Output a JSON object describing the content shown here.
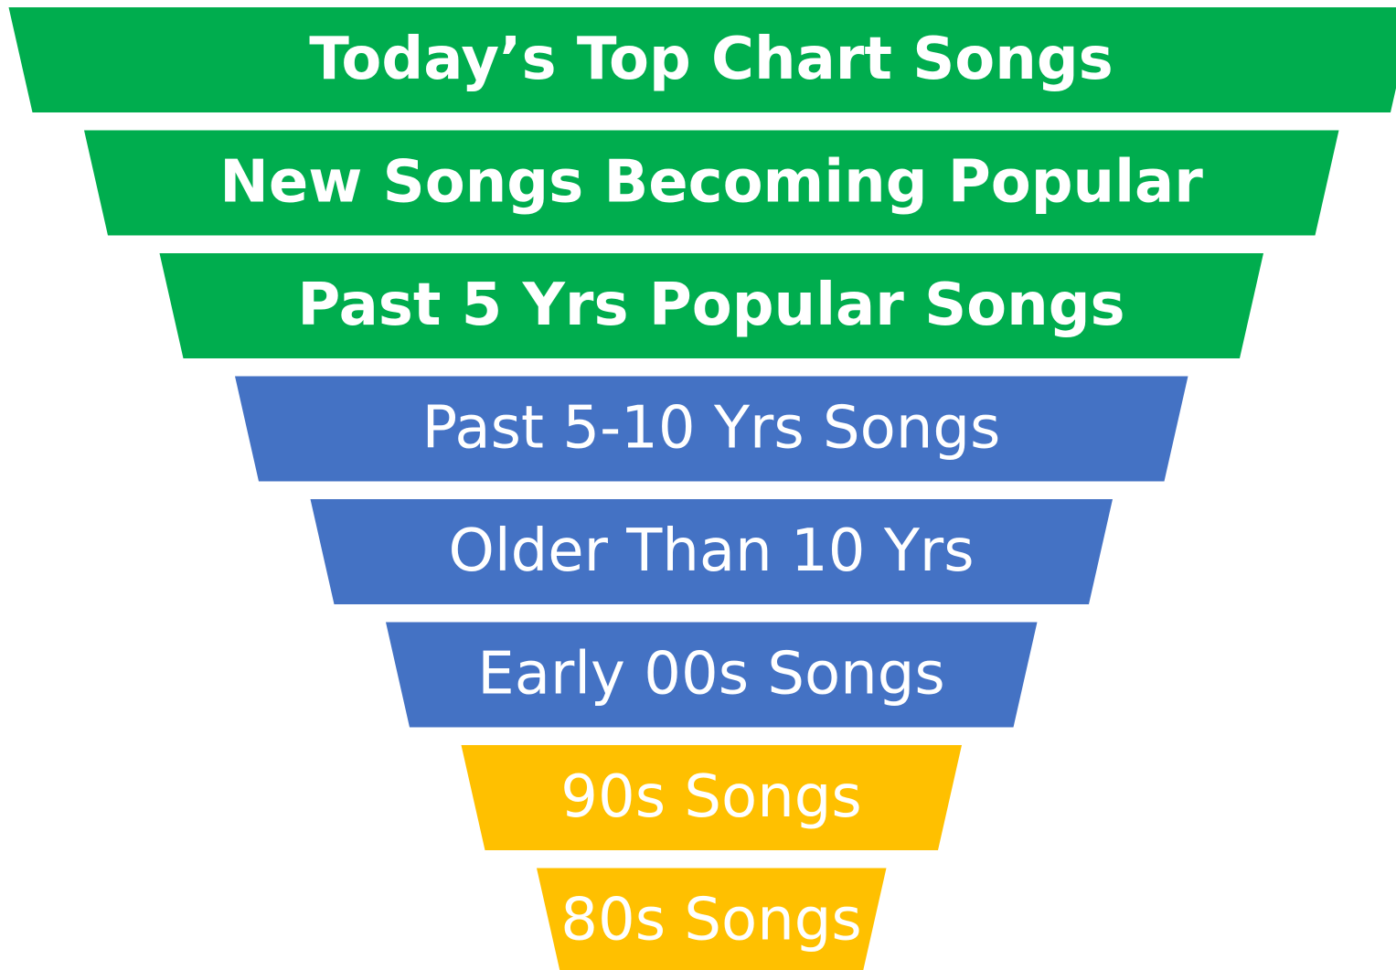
{
  "levels": [
    {
      "label": "Today’s Top Chart Songs"
    },
    {
      "label": "New Songs Becoming Popular"
    },
    {
      "label": "Past 5 Yrs Popular Songs"
    },
    {
      "label": "Past 5-10 Yrs Songs"
    },
    {
      "label": "Older Than 10 Yrs"
    },
    {
      "label": "Early 00s Songs"
    },
    {
      "label": "90s Songs"
    },
    {
      "label": "80s Songs"
    }
  ]
}
